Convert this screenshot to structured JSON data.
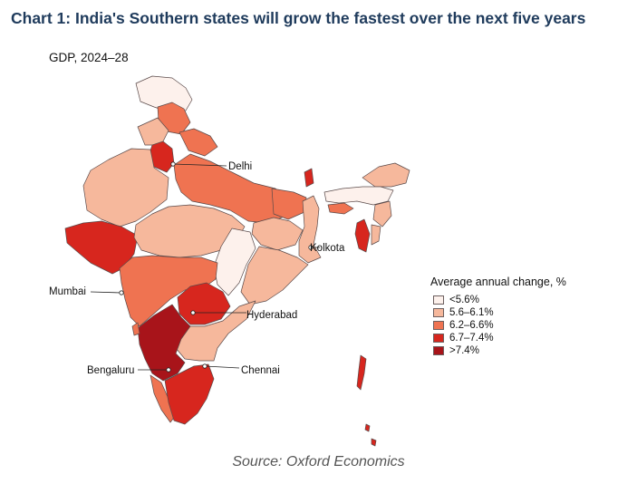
{
  "title": "Chart 1: India's Southern states will grow the fastest over the next five years",
  "subtitle": "GDP, 2024–28",
  "source": "Source: Oxford Economics",
  "legend": {
    "title": "Average annual change, %",
    "items": [
      {
        "label": "<5.6%",
        "color": "#fdf1ec"
      },
      {
        "label": "5.6–6.1%",
        "color": "#f6b89c"
      },
      {
        "label": "6.2–6.6%",
        "color": "#ef7351"
      },
      {
        "label": "6.7–7.4%",
        "color": "#d7261e"
      },
      {
        "label": ">7.4%",
        "color": "#a8141a"
      }
    ]
  },
  "cities": {
    "delhi": "Delhi",
    "kolkota": "Kolkota",
    "mumbai": "Mumbai",
    "hyderabad": "Hyderabad",
    "bengaluru": "Bengaluru",
    "chennai": "Chennai"
  }
}
